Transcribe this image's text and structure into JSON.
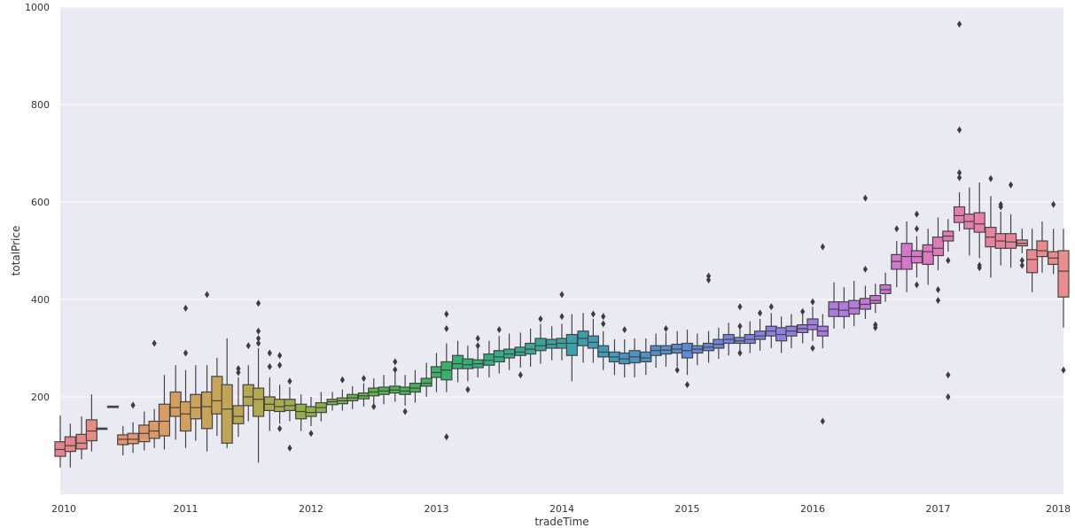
{
  "chart_data": {
    "type": "boxplot",
    "title": "",
    "xlabel": "tradeTime",
    "ylabel": "totalPrice",
    "background": "#eaeaf2",
    "grid": true,
    "grid_axis": "y",
    "xlim": [
      2010,
      2018
    ],
    "ylim": [
      0,
      1000
    ],
    "x_ticks": [
      "2010",
      "2011",
      "2012",
      "2013",
      "2014",
      "2015",
      "2016",
      "2017",
      "2018"
    ],
    "y_ticks": [
      "200",
      "400",
      "600",
      "800",
      "1000"
    ],
    "group_interval": "month",
    "boxes": [
      {
        "x": 2010.0,
        "q1": 78,
        "med": 92,
        "q3": 108,
        "wlo": 55,
        "whi": 162,
        "color": "#e8828b"
      },
      {
        "x": 2010.08,
        "q1": 88,
        "med": 100,
        "q3": 118,
        "wlo": 55,
        "whi": 145,
        "color": "#e8858a"
      },
      {
        "x": 2010.17,
        "q1": 93,
        "med": 105,
        "q3": 123,
        "wlo": 72,
        "whi": 160,
        "color": "#e88886"
      },
      {
        "x": 2010.25,
        "q1": 110,
        "med": 130,
        "q3": 153,
        "wlo": 88,
        "whi": 205,
        "color": "#e88b82"
      },
      {
        "x": 2010.33,
        "q1": 134,
        "med": 135,
        "q3": 136,
        "wlo": 134,
        "whi": 136,
        "color": "#e88e7e"
      },
      {
        "x": 2010.42,
        "q1": 180,
        "med": 180,
        "q3": 181,
        "wlo": 180,
        "whi": 181,
        "color": "#e8917b"
      },
      {
        "x": 2010.5,
        "q1": 102,
        "med": 113,
        "q3": 122,
        "wlo": 80,
        "whi": 140,
        "color": "#e59374"
      },
      {
        "x": 2010.58,
        "q1": 104,
        "med": 113,
        "q3": 125,
        "wlo": 85,
        "whi": 148,
        "outliers": [
          183
        ],
        "color": "#e39670"
      },
      {
        "x": 2010.67,
        "q1": 108,
        "med": 125,
        "q3": 142,
        "wlo": 90,
        "whi": 170,
        "color": "#e0986c"
      },
      {
        "x": 2010.75,
        "q1": 115,
        "med": 130,
        "q3": 150,
        "wlo": 95,
        "whi": 175,
        "outliers": [
          310
        ],
        "color": "#dd9a68"
      },
      {
        "x": 2010.83,
        "q1": 120,
        "med": 150,
        "q3": 185,
        "wlo": 92,
        "whi": 245,
        "color": "#d99c64"
      },
      {
        "x": 2010.92,
        "q1": 160,
        "med": 178,
        "q3": 210,
        "wlo": 112,
        "whi": 265,
        "color": "#d59e60"
      },
      {
        "x": 2011.0,
        "q1": 130,
        "med": 165,
        "q3": 190,
        "wlo": 95,
        "whi": 255,
        "outliers": [
          290,
          382
        ],
        "color": "#d1a05c"
      },
      {
        "x": 2011.08,
        "q1": 155,
        "med": 178,
        "q3": 205,
        "wlo": 110,
        "whi": 265,
        "color": "#cda25a"
      },
      {
        "x": 2011.17,
        "q1": 135,
        "med": 180,
        "q3": 210,
        "wlo": 88,
        "whi": 265,
        "outliers": [
          410
        ],
        "color": "#c9a358"
      },
      {
        "x": 2011.25,
        "q1": 165,
        "med": 192,
        "q3": 242,
        "wlo": 120,
        "whi": 280,
        "color": "#c5a456"
      },
      {
        "x": 2011.33,
        "q1": 105,
        "med": 175,
        "q3": 225,
        "wlo": 95,
        "whi": 320,
        "color": "#c1a554"
      },
      {
        "x": 2011.42,
        "q1": 145,
        "med": 160,
        "q3": 182,
        "wlo": 118,
        "whi": 240,
        "outliers": [
          250,
          258
        ],
        "color": "#bca652"
      },
      {
        "x": 2011.5,
        "q1": 182,
        "med": 200,
        "q3": 225,
        "wlo": 150,
        "whi": 265,
        "outliers": [
          305
        ],
        "color": "#b7a750"
      },
      {
        "x": 2011.58,
        "q1": 160,
        "med": 195,
        "q3": 218,
        "wlo": 65,
        "whi": 300,
        "outliers": [
          310,
          320,
          335,
          392
        ],
        "color": "#b2a84e"
      },
      {
        "x": 2011.67,
        "q1": 172,
        "med": 185,
        "q3": 200,
        "wlo": 130,
        "whi": 240,
        "outliers": [
          262,
          290
        ],
        "color": "#adaa4c"
      },
      {
        "x": 2011.75,
        "q1": 170,
        "med": 180,
        "q3": 195,
        "wlo": 145,
        "whi": 225,
        "outliers": [
          285,
          265,
          135
        ],
        "color": "#a8ab4b"
      },
      {
        "x": 2011.83,
        "q1": 172,
        "med": 182,
        "q3": 195,
        "wlo": 150,
        "whi": 220,
        "outliers": [
          232,
          95
        ],
        "color": "#a3ac4a"
      },
      {
        "x": 2011.92,
        "q1": 155,
        "med": 170,
        "q3": 185,
        "wlo": 130,
        "whi": 205,
        "color": "#9aae48"
      },
      {
        "x": 2012.0,
        "q1": 160,
        "med": 168,
        "q3": 180,
        "wlo": 140,
        "whi": 200,
        "outliers": [
          125
        ],
        "color": "#90b047"
      },
      {
        "x": 2012.08,
        "q1": 168,
        "med": 178,
        "q3": 188,
        "wlo": 150,
        "whi": 210,
        "color": "#86b146"
      },
      {
        "x": 2012.17,
        "q1": 184,
        "med": 190,
        "q3": 195,
        "wlo": 172,
        "whi": 210,
        "color": "#7cb246"
      },
      {
        "x": 2012.25,
        "q1": 186,
        "med": 192,
        "q3": 198,
        "wlo": 172,
        "whi": 215,
        "outliers": [
          235
        ],
        "color": "#72b347"
      },
      {
        "x": 2012.33,
        "q1": 192,
        "med": 198,
        "q3": 205,
        "wlo": 175,
        "whi": 222,
        "color": "#68b448"
      },
      {
        "x": 2012.42,
        "q1": 196,
        "med": 202,
        "q3": 208,
        "wlo": 180,
        "whi": 228,
        "outliers": [
          238
        ],
        "color": "#5fb449"
      },
      {
        "x": 2012.5,
        "q1": 202,
        "med": 210,
        "q3": 218,
        "wlo": 185,
        "whi": 238,
        "outliers": [
          180
        ],
        "color": "#56b44b"
      },
      {
        "x": 2012.58,
        "q1": 205,
        "med": 212,
        "q3": 220,
        "wlo": 185,
        "whi": 245,
        "color": "#4fb44e"
      },
      {
        "x": 2012.67,
        "q1": 208,
        "med": 214,
        "q3": 222,
        "wlo": 190,
        "whi": 250,
        "outliers": [
          272,
          256
        ],
        "color": "#4ab452"
      },
      {
        "x": 2012.75,
        "q1": 205,
        "med": 212,
        "q3": 220,
        "wlo": 182,
        "whi": 245,
        "outliers": [
          170
        ],
        "color": "#46b357"
      },
      {
        "x": 2012.83,
        "q1": 210,
        "med": 218,
        "q3": 228,
        "wlo": 188,
        "whi": 255,
        "color": "#42b35c"
      },
      {
        "x": 2012.92,
        "q1": 222,
        "med": 228,
        "q3": 238,
        "wlo": 200,
        "whi": 270,
        "color": "#3fb361"
      },
      {
        "x": 2013.0,
        "q1": 240,
        "med": 250,
        "q3": 262,
        "wlo": 210,
        "whi": 290,
        "color": "#3cb266"
      },
      {
        "x": 2013.08,
        "q1": 235,
        "med": 255,
        "q3": 272,
        "wlo": 210,
        "whi": 310,
        "outliers": [
          370,
          340,
          118
        ],
        "color": "#3ab16b"
      },
      {
        "x": 2013.17,
        "q1": 258,
        "med": 268,
        "q3": 285,
        "wlo": 230,
        "whi": 315,
        "color": "#38b070"
      },
      {
        "x": 2013.25,
        "q1": 258,
        "med": 266,
        "q3": 278,
        "wlo": 232,
        "whi": 305,
        "outliers": [
          215
        ],
        "color": "#36af76"
      },
      {
        "x": 2013.33,
        "q1": 260,
        "med": 268,
        "q3": 276,
        "wlo": 240,
        "whi": 305,
        "outliers": [
          320,
          305
        ],
        "color": "#35ae7b"
      },
      {
        "x": 2013.42,
        "q1": 265,
        "med": 275,
        "q3": 288,
        "wlo": 240,
        "whi": 315,
        "color": "#35ad80"
      },
      {
        "x": 2013.5,
        "q1": 272,
        "med": 282,
        "q3": 295,
        "wlo": 248,
        "whi": 325,
        "outliers": [
          338
        ],
        "color": "#35ab86"
      },
      {
        "x": 2013.58,
        "q1": 280,
        "med": 288,
        "q3": 298,
        "wlo": 255,
        "whi": 330,
        "color": "#36aa8b"
      },
      {
        "x": 2013.67,
        "q1": 285,
        "med": 292,
        "q3": 302,
        "wlo": 260,
        "whi": 332,
        "outliers": [
          245
        ],
        "color": "#37a890"
      },
      {
        "x": 2013.75,
        "q1": 288,
        "med": 298,
        "q3": 310,
        "wlo": 262,
        "whi": 340,
        "color": "#38a795"
      },
      {
        "x": 2013.83,
        "q1": 295,
        "med": 305,
        "q3": 320,
        "wlo": 268,
        "whi": 350,
        "outliers": [
          360
        ],
        "color": "#39a59a"
      },
      {
        "x": 2013.92,
        "q1": 300,
        "med": 308,
        "q3": 318,
        "wlo": 275,
        "whi": 345,
        "color": "#3aa49f"
      },
      {
        "x": 2014.0,
        "q1": 300,
        "med": 310,
        "q3": 320,
        "wlo": 275,
        "whi": 350,
        "outliers": [
          410,
          365
        ],
        "color": "#3ba2a4"
      },
      {
        "x": 2014.08,
        "q1": 285,
        "med": 310,
        "q3": 328,
        "wlo": 232,
        "whi": 370,
        "color": "#3ca1a9"
      },
      {
        "x": 2014.17,
        "q1": 305,
        "med": 320,
        "q3": 335,
        "wlo": 270,
        "whi": 372,
        "color": "#3d9fae"
      },
      {
        "x": 2014.25,
        "q1": 300,
        "med": 312,
        "q3": 325,
        "wlo": 270,
        "whi": 360,
        "outliers": [
          370
        ],
        "color": "#3f9db3"
      },
      {
        "x": 2014.33,
        "q1": 282,
        "med": 292,
        "q3": 305,
        "wlo": 255,
        "whi": 335,
        "outliers": [
          365,
          350
        ],
        "color": "#409bb8"
      },
      {
        "x": 2014.42,
        "q1": 272,
        "med": 282,
        "q3": 292,
        "wlo": 245,
        "whi": 318,
        "color": "#4299bc"
      },
      {
        "x": 2014.5,
        "q1": 268,
        "med": 278,
        "q3": 290,
        "wlo": 240,
        "whi": 318,
        "outliers": [
          338
        ],
        "color": "#4597c1"
      },
      {
        "x": 2014.58,
        "q1": 270,
        "med": 282,
        "q3": 295,
        "wlo": 240,
        "whi": 320,
        "color": "#4895c5"
      },
      {
        "x": 2014.67,
        "q1": 272,
        "med": 280,
        "q3": 292,
        "wlo": 245,
        "whi": 320,
        "color": "#4c93c9"
      },
      {
        "x": 2014.75,
        "q1": 285,
        "med": 295,
        "q3": 305,
        "wlo": 260,
        "whi": 330,
        "color": "#5091cd"
      },
      {
        "x": 2014.83,
        "q1": 288,
        "med": 296,
        "q3": 305,
        "wlo": 262,
        "whi": 332,
        "outliers": [
          340
        ],
        "color": "#548fd1"
      },
      {
        "x": 2014.92,
        "q1": 290,
        "med": 298,
        "q3": 308,
        "wlo": 262,
        "whi": 335,
        "outliers": [
          255
        ],
        "color": "#598dd4"
      },
      {
        "x": 2015.0,
        "q1": 280,
        "med": 295,
        "q3": 310,
        "wlo": 245,
        "whi": 338,
        "outliers": [
          225
        ],
        "color": "#5e8bd7"
      },
      {
        "x": 2015.08,
        "q1": 290,
        "med": 298,
        "q3": 305,
        "wlo": 265,
        "whi": 330,
        "color": "#6389da"
      },
      {
        "x": 2015.17,
        "q1": 295,
        "med": 302,
        "q3": 310,
        "wlo": 270,
        "whi": 335,
        "outliers": [
          448,
          440
        ],
        "color": "#6887dc"
      },
      {
        "x": 2015.25,
        "q1": 300,
        "med": 308,
        "q3": 318,
        "wlo": 278,
        "whi": 342,
        "color": "#6e86de"
      },
      {
        "x": 2015.33,
        "q1": 310,
        "med": 318,
        "q3": 328,
        "wlo": 285,
        "whi": 352,
        "color": "#7385e0"
      },
      {
        "x": 2015.42,
        "q1": 310,
        "med": 315,
        "q3": 322,
        "wlo": 290,
        "whi": 345,
        "outliers": [
          385,
          345,
          290
        ],
        "color": "#7984e1"
      },
      {
        "x": 2015.5,
        "q1": 310,
        "med": 318,
        "q3": 328,
        "wlo": 290,
        "whi": 355,
        "color": "#7e83e2"
      },
      {
        "x": 2015.58,
        "q1": 318,
        "med": 325,
        "q3": 335,
        "wlo": 295,
        "whi": 360,
        "outliers": [
          372
        ],
        "color": "#8482e3"
      },
      {
        "x": 2015.67,
        "q1": 325,
        "med": 335,
        "q3": 345,
        "wlo": 300,
        "whi": 372,
        "outliers": [
          385
        ],
        "color": "#8a81e4"
      },
      {
        "x": 2015.75,
        "q1": 315,
        "med": 328,
        "q3": 342,
        "wlo": 290,
        "whi": 365,
        "color": "#9080e4"
      },
      {
        "x": 2015.83,
        "q1": 325,
        "med": 335,
        "q3": 345,
        "wlo": 300,
        "whi": 370,
        "color": "#967fe4"
      },
      {
        "x": 2015.92,
        "q1": 332,
        "med": 340,
        "q3": 348,
        "wlo": 310,
        "whi": 370,
        "outliers": [
          375
        ],
        "color": "#9c7ee4"
      },
      {
        "x": 2016.0,
        "q1": 338,
        "med": 348,
        "q3": 360,
        "wlo": 315,
        "whi": 385,
        "outliers": [
          395,
          300
        ],
        "color": "#a27de3"
      },
      {
        "x": 2016.08,
        "q1": 325,
        "med": 335,
        "q3": 345,
        "wlo": 300,
        "whi": 370,
        "outliers": [
          508,
          150
        ],
        "color": "#a87ce2"
      },
      {
        "x": 2016.17,
        "q1": 365,
        "med": 380,
        "q3": 395,
        "wlo": 340,
        "whi": 435,
        "color": "#ae7be1"
      },
      {
        "x": 2016.25,
        "q1": 365,
        "med": 378,
        "q3": 395,
        "wlo": 340,
        "whi": 425,
        "color": "#b47adf"
      },
      {
        "x": 2016.33,
        "q1": 370,
        "med": 382,
        "q3": 398,
        "wlo": 345,
        "whi": 438,
        "color": "#ba79dc"
      },
      {
        "x": 2016.42,
        "q1": 380,
        "med": 390,
        "q3": 402,
        "wlo": 360,
        "whi": 428,
        "outliers": [
          608,
          462
        ],
        "color": "#c078d9"
      },
      {
        "x": 2016.5,
        "q1": 392,
        "med": 398,
        "q3": 408,
        "wlo": 372,
        "whi": 432,
        "outliers": [
          348,
          342
        ],
        "color": "#c677d6"
      },
      {
        "x": 2016.58,
        "q1": 412,
        "med": 420,
        "q3": 430,
        "wlo": 395,
        "whi": 455,
        "color": "#cb77d2"
      },
      {
        "x": 2016.67,
        "q1": 462,
        "med": 478,
        "q3": 492,
        "wlo": 425,
        "whi": 520,
        "outliers": [
          545
        ],
        "color": "#d077ce"
      },
      {
        "x": 2016.75,
        "q1": 462,
        "med": 488,
        "q3": 515,
        "wlo": 415,
        "whi": 560,
        "color": "#d577ca"
      },
      {
        "x": 2016.83,
        "q1": 475,
        "med": 488,
        "q3": 500,
        "wlo": 445,
        "whi": 530,
        "outliers": [
          575,
          545,
          430
        ],
        "color": "#d978c6"
      },
      {
        "x": 2016.92,
        "q1": 472,
        "med": 498,
        "q3": 512,
        "wlo": 430,
        "whi": 545,
        "color": "#dd79c1"
      },
      {
        "x": 2017.0,
        "q1": 490,
        "med": 505,
        "q3": 528,
        "wlo": 460,
        "whi": 568,
        "outliers": [
          420,
          398
        ],
        "color": "#e07abc"
      },
      {
        "x": 2017.08,
        "q1": 520,
        "med": 530,
        "q3": 540,
        "wlo": 498,
        "whi": 565,
        "outliers": [
          480,
          245,
          200
        ],
        "color": "#e37bb7"
      },
      {
        "x": 2017.17,
        "q1": 558,
        "med": 572,
        "q3": 590,
        "wlo": 540,
        "whi": 620,
        "outliers": [
          965,
          748,
          660,
          650
        ],
        "color": "#e57db2"
      },
      {
        "x": 2017.25,
        "q1": 545,
        "med": 560,
        "q3": 575,
        "wlo": 490,
        "whi": 630,
        "color": "#e67ead"
      },
      {
        "x": 2017.33,
        "q1": 538,
        "med": 555,
        "q3": 578,
        "wlo": 485,
        "whi": 640,
        "outliers": [
          470,
          465
        ],
        "color": "#e780a8"
      },
      {
        "x": 2017.42,
        "q1": 508,
        "med": 528,
        "q3": 548,
        "wlo": 445,
        "whi": 612,
        "outliers": [
          648
        ],
        "color": "#e882a3"
      },
      {
        "x": 2017.5,
        "q1": 505,
        "med": 520,
        "q3": 535,
        "wlo": 470,
        "whi": 580,
        "outliers": [
          595,
          590
        ],
        "color": "#e8849e"
      },
      {
        "x": 2017.58,
        "q1": 505,
        "med": 518,
        "q3": 535,
        "wlo": 465,
        "whi": 575,
        "outliers": [
          635
        ],
        "color": "#e88699"
      },
      {
        "x": 2017.67,
        "q1": 510,
        "med": 515,
        "q3": 522,
        "wlo": 495,
        "whi": 545,
        "outliers": [
          480,
          470
        ],
        "color": "#e88895"
      },
      {
        "x": 2017.75,
        "q1": 455,
        "med": 482,
        "q3": 502,
        "wlo": 415,
        "whi": 545,
        "color": "#e88a91"
      },
      {
        "x": 2017.83,
        "q1": 488,
        "med": 500,
        "q3": 520,
        "wlo": 455,
        "whi": 560,
        "color": "#e88c8d"
      },
      {
        "x": 2017.92,
        "q1": 472,
        "med": 485,
        "q3": 498,
        "wlo": 452,
        "whi": 545,
        "outliers": [
          595
        ],
        "color": "#e88e8a"
      },
      {
        "x": 2018.0,
        "q1": 405,
        "med": 458,
        "q3": 500,
        "wlo": 342,
        "whi": 545,
        "outliers": [
          255
        ],
        "color": "#e88f8d"
      }
    ]
  }
}
